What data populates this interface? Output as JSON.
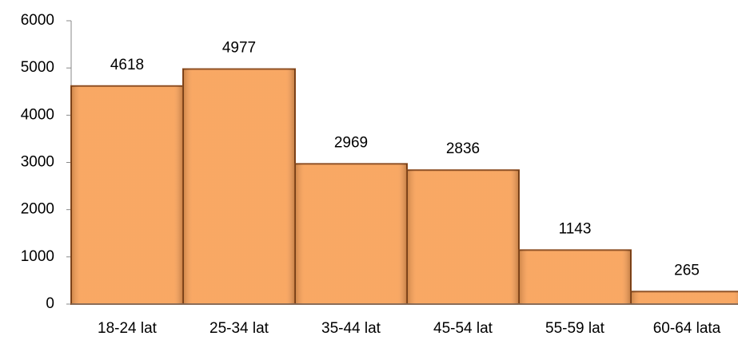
{
  "chart_data": {
    "type": "bar",
    "categories": [
      "18-24 lat",
      "25-34 lat",
      "35-44 lat",
      "45-54 lat",
      "55-59 lat",
      "60-64 lata"
    ],
    "values": [
      4618,
      4977,
      2969,
      2836,
      1143,
      265
    ],
    "color": "#f8a057",
    "ylim": [
      0,
      6000
    ],
    "yticks": [
      0,
      1000,
      2000,
      3000,
      4000,
      5000,
      6000
    ],
    "grid": false
  }
}
